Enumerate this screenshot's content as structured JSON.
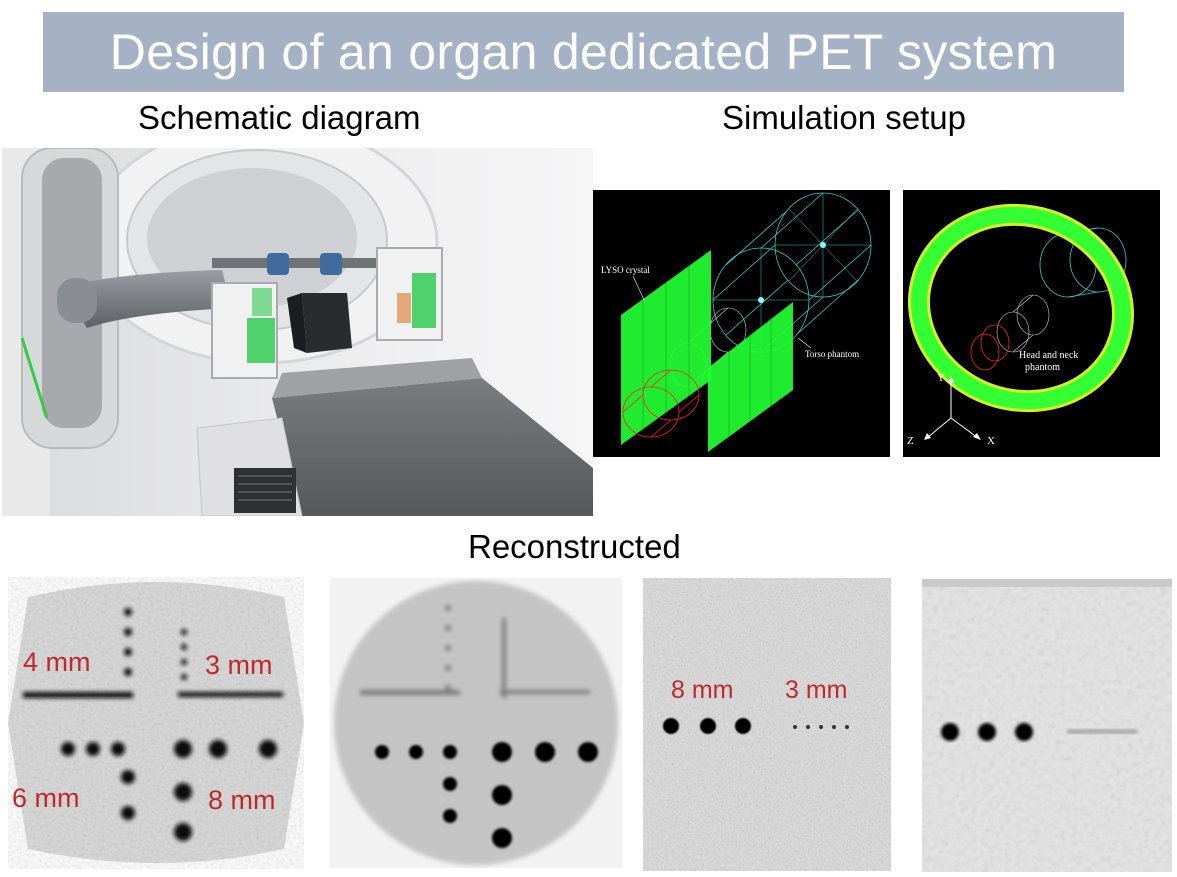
{
  "title": "Design of an organ dedicated PET system",
  "headings": {
    "schematic": "Schematic diagram",
    "simulation": "Simulation setup",
    "reconstructed": "Reconstructed"
  },
  "simulation_labels": {
    "lyso": "LYSO crystal",
    "torso": "Torso phantom",
    "head_neck_line1": "Head and neck",
    "head_neck_line2": "phantom",
    "axis_y": "Y",
    "axis_z": "Z",
    "axis_x": "X"
  },
  "recon_labels": {
    "panel1_4mm": "4 mm",
    "panel1_3mm": "3 mm",
    "panel1_6mm": "6 mm",
    "panel1_8mm": "8 mm",
    "panel3_8mm": "8 mm",
    "panel3_3mm": "3 mm"
  },
  "colors": {
    "title_bar": "#a5b2c6",
    "crystal_green": "#33ff33",
    "phantom_cyan": "#33cccc",
    "source_red": "#ff2222",
    "label_red": "#c0282a"
  }
}
